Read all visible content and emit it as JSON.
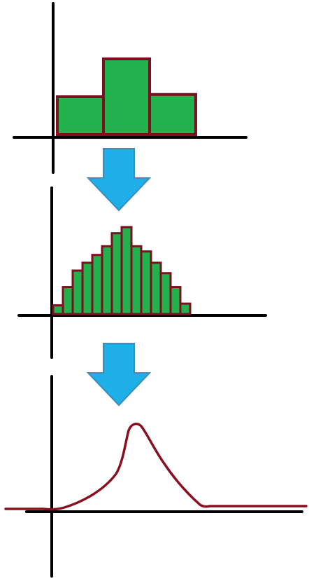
{
  "colors": {
    "axis": "#000000",
    "bar_fill": "#22b14c",
    "bar_outline": "#7a1020",
    "arrow_fill": "#1eaee8",
    "arrow_outline": "#3a8fb8",
    "curve": "#8a1020",
    "background": "#ffffff"
  },
  "panels": [
    {
      "kind": "histogram",
      "bin_count": 3,
      "relative_heights": [
        0.5,
        1.0,
        0.53
      ]
    },
    {
      "kind": "histogram",
      "bin_count": 14,
      "relative_heights": [
        0.1,
        0.31,
        0.5,
        0.59,
        0.68,
        0.78,
        0.93,
        1.0,
        0.78,
        0.72,
        0.59,
        0.47,
        0.31,
        0.12
      ]
    },
    {
      "kind": "smooth-curve",
      "peak_relative_height": 1.0
    }
  ],
  "arrows": [
    {
      "icon": "down-arrow-icon"
    },
    {
      "icon": "down-arrow-icon"
    }
  ]
}
